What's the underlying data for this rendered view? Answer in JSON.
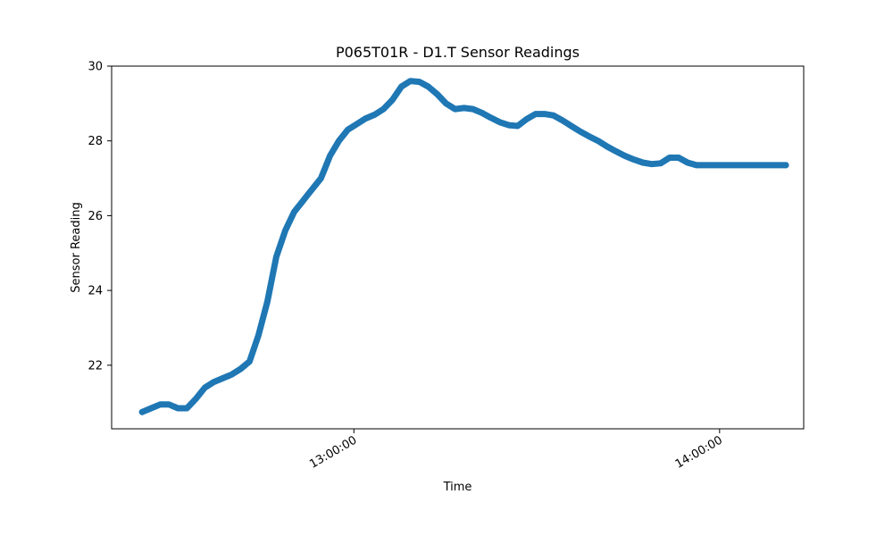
{
  "chart_data": {
    "type": "line",
    "title": "P065T01R - D1.T Sensor Readings",
    "xlabel": "Time",
    "ylabel": "Sensor Reading",
    "x_tick_labels": [
      "13:00:00",
      "14:00:00"
    ],
    "y_tick_labels": [
      "22",
      "24",
      "26",
      "28",
      "30"
    ],
    "x_tick_values": [
      "13:00:00",
      "14:00:00"
    ],
    "y_ticks": [
      22,
      24,
      26,
      28,
      30
    ],
    "xlim": [
      "12:20:15",
      "14:13:48"
    ],
    "ylim": [
      20.3,
      30
    ],
    "grid": false,
    "legend": "none",
    "colors": {
      "series": "#1f77b4",
      "axes": "#000000",
      "background": "#ffffff"
    },
    "series": [
      {
        "x": [
          "12:25:16",
          "12:26:44",
          "12:28:12",
          "12:29:40",
          "12:31:08",
          "12:32:36",
          "12:34:04",
          "12:35:32",
          "12:37:00",
          "12:38:28",
          "12:39:56",
          "12:41:24",
          "12:42:52",
          "12:44:20",
          "12:45:48",
          "12:47:16",
          "12:48:44",
          "12:50:12",
          "12:51:40",
          "12:52:23",
          "12:53:08",
          "12:54:36",
          "12:55:20",
          "12:56:04",
          "12:57:32",
          "12:59:00",
          "13:00:28",
          "13:01:56",
          "13:03:24",
          "13:04:52",
          "13:06:20",
          "13:07:48",
          "13:09:16",
          "13:10:44",
          "13:12:12",
          "13:13:40",
          "13:15:08",
          "13:16:36",
          "13:18:04",
          "13:19:32",
          "13:21:00",
          "13:22:28",
          "13:23:56",
          "13:25:24",
          "13:26:52",
          "13:28:20",
          "13:29:48",
          "13:31:16",
          "13:32:44",
          "13:34:12",
          "13:35:40",
          "13:37:08",
          "13:38:36",
          "13:40:04",
          "13:41:32",
          "13:43:00",
          "13:44:28",
          "13:45:56",
          "13:47:24",
          "13:48:52",
          "13:50:20",
          "13:51:48",
          "13:53:16",
          "13:54:44",
          "13:56:12",
          "13:57:40",
          "13:59:08",
          "14:00:36",
          "14:02:04",
          "14:03:32",
          "14:05:00",
          "14:06:28",
          "14:07:56",
          "14:09:24",
          "14:10:52"
        ],
        "values": [
          20.75,
          20.85,
          20.95,
          20.95,
          20.85,
          20.85,
          21.1,
          21.4,
          21.55,
          21.65,
          21.75,
          21.9,
          22.1,
          22.8,
          23.7,
          24.9,
          25.6,
          26.1,
          26.4,
          26.55,
          26.7,
          27.0,
          27.3,
          27.6,
          28.0,
          28.3,
          28.45,
          28.6,
          28.7,
          28.85,
          29.1,
          29.45,
          29.6,
          29.58,
          29.45,
          29.25,
          29.0,
          28.85,
          28.88,
          28.85,
          28.75,
          28.62,
          28.5,
          28.42,
          28.4,
          28.58,
          28.72,
          28.72,
          28.68,
          28.55,
          28.4,
          28.25,
          28.12,
          28.0,
          27.85,
          27.72,
          27.6,
          27.5,
          27.42,
          27.38,
          27.4,
          27.55,
          27.55,
          27.42,
          27.35,
          27.35,
          27.35,
          27.35,
          27.35,
          27.35,
          27.35,
          27.35,
          27.35,
          27.35,
          27.35
        ]
      }
    ]
  }
}
